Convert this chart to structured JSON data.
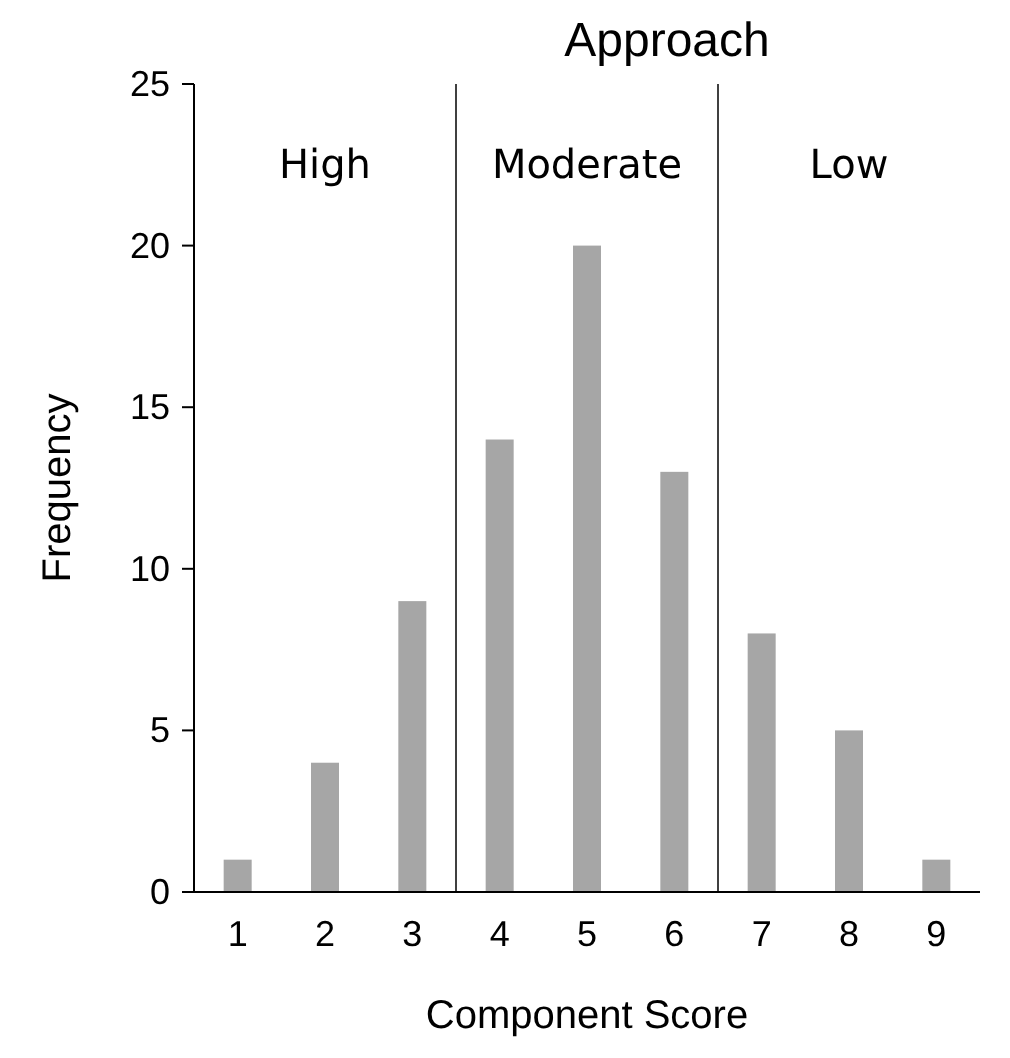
{
  "chart_data": {
    "type": "bar",
    "title": "Approach",
    "xlabel": "Component Score",
    "ylabel": "Frequency",
    "x": [
      1,
      2,
      3,
      4,
      5,
      6,
      7,
      8,
      9
    ],
    "values": [
      1,
      4,
      9,
      14,
      20,
      13,
      8,
      5,
      1
    ],
    "color": "#a6a6a6",
    "xlim": [
      0.5,
      9.5
    ],
    "xticks": [
      1,
      2,
      3,
      4,
      5,
      6,
      7,
      8,
      9
    ],
    "ylim": [
      0,
      25
    ],
    "yticks": [
      0,
      5,
      10,
      15,
      20,
      25
    ],
    "grid": false,
    "ref_lines": [
      {
        "axis": "x",
        "value": 3.5,
        "color": "#404040"
      },
      {
        "axis": "x",
        "value": 6.5,
        "color": "#404040"
      }
    ],
    "annotations": [
      "High",
      "Moderate",
      "Low"
    ]
  }
}
